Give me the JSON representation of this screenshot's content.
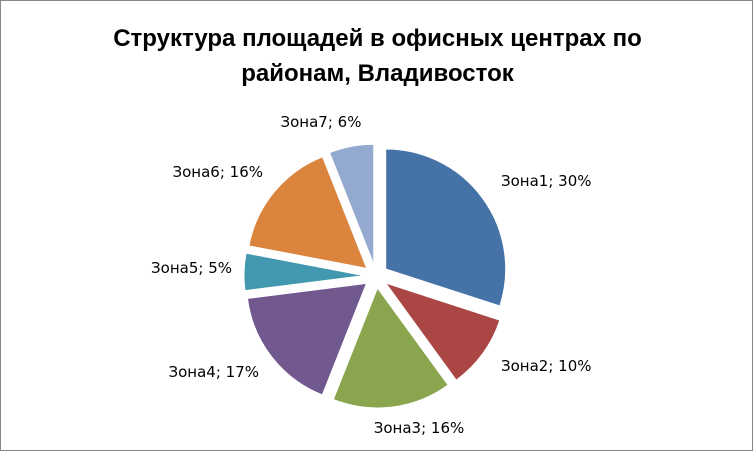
{
  "chart_data": {
    "type": "pie",
    "title": "Структура  площадей в офисных центрах по районам, Владивосток",
    "title_lines": [
      "Структура  площадей в офисных центрах по",
      "районам, Владивосток"
    ],
    "exploded": true,
    "legend": "none",
    "categories": [
      "Зона1",
      "Зона2",
      "Зона3",
      "Зона4",
      "Зона5",
      "Зона6",
      "Зона7"
    ],
    "values": [
      30,
      10,
      16,
      17,
      5,
      16,
      6
    ],
    "labels": [
      "Зона1; 30%",
      "Зона2; 10%",
      "Зона3; 16%",
      "Зона4; 17%",
      "Зона5; 5%",
      "Зона6; 16%",
      "Зона7; 6%"
    ],
    "colors": [
      "#4572A7",
      "#AA4643",
      "#89A54E",
      "#71588F",
      "#4198AF",
      "#DB843D",
      "#93A9CF"
    ]
  }
}
